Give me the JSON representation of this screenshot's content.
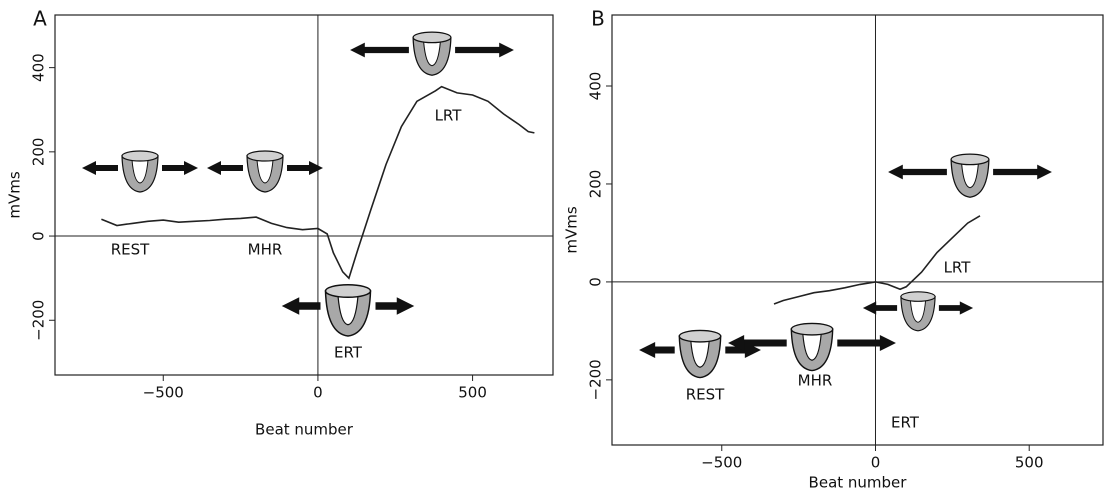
{
  "chart_data": [
    {
      "type": "line",
      "panel": "A",
      "xlabel": "Beat number",
      "ylabel": "mVms",
      "color": "#222",
      "xlim": [
        -850,
        760
      ],
      "ylim": [
        -330,
        525
      ],
      "xticks": [
        {
          "value": -500,
          "label": "−500"
        },
        0,
        500
      ],
      "yticks": [
        {
          "value": -200,
          "label": "−200"
        },
        0,
        200,
        400
      ],
      "annotations": [
        "REST",
        "MHR",
        "ERT",
        "LRT"
      ],
      "x": [
        -700,
        -650,
        -600,
        -550,
        -500,
        -450,
        -400,
        -350,
        -300,
        -250,
        -200,
        -150,
        -100,
        -50,
        0,
        30,
        50,
        80,
        100,
        130,
        170,
        220,
        270,
        320,
        380,
        400,
        450,
        500,
        550,
        600,
        650,
        680,
        700
      ],
      "values": [
        40,
        25,
        30,
        35,
        38,
        33,
        35,
        37,
        40,
        42,
        45,
        30,
        20,
        15,
        18,
        5,
        -40,
        -85,
        -100,
        -30,
        60,
        170,
        260,
        320,
        345,
        355,
        340,
        335,
        320,
        290,
        265,
        248,
        245
      ]
    },
    {
      "type": "line",
      "panel": "B",
      "xlabel": "Beat number",
      "ylabel": "mVms",
      "color": "#222",
      "xlim": [
        -857,
        740
      ],
      "ylim": [
        -333,
        545
      ],
      "xticks": [
        {
          "value": -500,
          "label": "−500"
        },
        0,
        500
      ],
      "yticks": [
        {
          "value": -200,
          "label": "−200"
        },
        0,
        200,
        400
      ],
      "annotations": [
        "REST",
        "MHR",
        "ERT",
        "LRT"
      ],
      "x": [
        -330,
        -300,
        -250,
        -200,
        -150,
        -100,
        -50,
        0,
        40,
        80,
        100,
        150,
        200,
        250,
        300,
        340
      ],
      "values": [
        -45,
        -38,
        -30,
        -22,
        -18,
        -12,
        -5,
        0,
        -5,
        -15,
        -10,
        20,
        60,
        90,
        120,
        135
      ]
    }
  ]
}
